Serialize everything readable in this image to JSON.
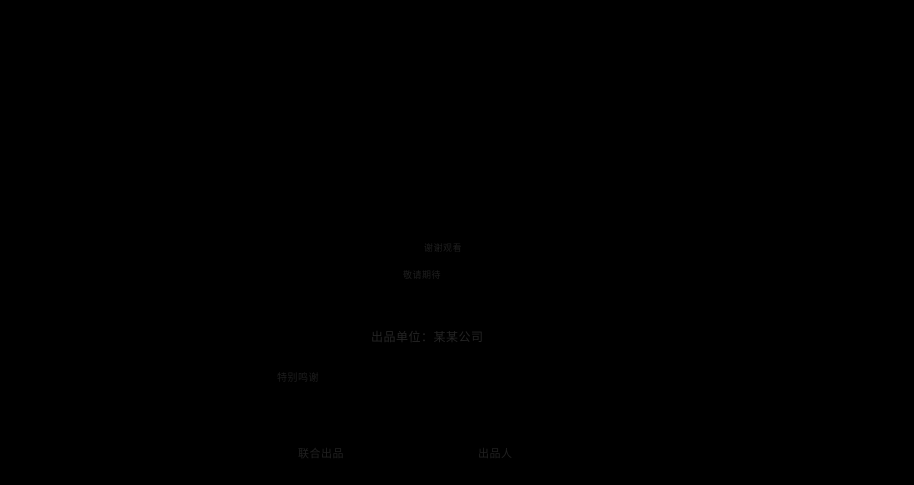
{
  "screen": {
    "background_color": "#000000",
    "description_labels_color_range": [
      "#1a1a1a",
      "#242424"
    ]
  },
  "labels": {
    "l1": {
      "text": "谢谢观看",
      "color": "#1e1e1e"
    },
    "l2": {
      "text": "敬请期待",
      "color": "#1e1e1e"
    },
    "l3": {
      "text": "出品单位：某某公司",
      "color": "#242424"
    },
    "l4": {
      "text": "特别鸣谢",
      "color": "#1d1d1d"
    },
    "l5": {
      "text": "联合出品",
      "color": "#202020"
    },
    "l6": {
      "text": "出品人",
      "color": "#202020"
    }
  }
}
